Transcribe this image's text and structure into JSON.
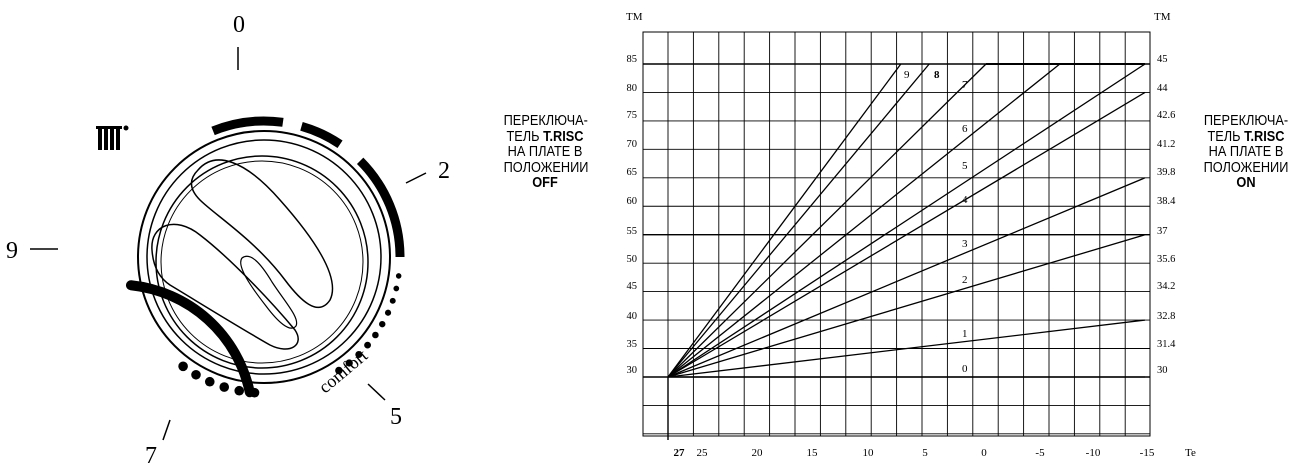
{
  "dial": {
    "scale_labels": [
      "0",
      "2",
      "5",
      "7",
      "9"
    ],
    "comfort_label": "comfort"
  },
  "left_label": {
    "line1": "ПЕРЕКЛЮЧА-",
    "line2_prefix": "ТЕЛЬ ",
    "line2_bold": "T.RISC",
    "line3": "НА ПЛАТЕ В",
    "line4": "ПОЛОЖЕНИИ",
    "line5_bold": "OFF"
  },
  "right_label": {
    "line1": "ПЕРЕКЛЮЧА-",
    "line2_prefix": "ТЕЛЬ ",
    "line2_bold": "T.RISC",
    "line3": "НА ПЛАТЕ В",
    "line4": "ПОЛОЖЕНИИ",
    "line5_bold": "ON"
  },
  "chart_data": {
    "type": "line",
    "left_axis_label": "TM",
    "right_axis_label": "TM",
    "x_axis_label": "Te",
    "x_range": [
      27,
      -15
    ],
    "left_range": [
      30,
      85
    ],
    "right_range": [
      30,
      45
    ],
    "x_ticks": [
      "27",
      "25",
      "20",
      "15",
      "10",
      "5",
      "0",
      "-5",
      "-10",
      "-15"
    ],
    "left_ticks": [
      "30",
      "35",
      "40",
      "45",
      "50",
      "55",
      "60",
      "65",
      "70",
      "75",
      "80",
      "85"
    ],
    "right_ticks": [
      "30",
      "31.4",
      "32.8",
      "34.2",
      "35.6",
      "37",
      "38.4",
      "39.8",
      "41.2",
      "42.6",
      "44",
      "45"
    ],
    "origin": {
      "te": 27,
      "tm": 30
    },
    "curves": [
      {
        "label": "0",
        "end_te": -15,
        "end_tm": 30
      },
      {
        "label": "1",
        "end_te": -15,
        "end_tm": 40
      },
      {
        "label": "2",
        "end_te": -15,
        "end_tm": 55
      },
      {
        "label": "3",
        "end_te": -15,
        "end_tm": 65
      },
      {
        "label": "4",
        "end_te": -15,
        "end_tm": 80
      },
      {
        "label": "5",
        "end_te": -15,
        "end_tm": 85
      },
      {
        "label": "6",
        "end_te": -7.5,
        "end_tm": 85
      },
      {
        "label": "7",
        "end_te": -1,
        "end_tm": 85
      },
      {
        "label": "8",
        "end_te": 4,
        "end_tm": 85
      },
      {
        "label": "9",
        "end_te": 6.5,
        "end_tm": 85
      }
    ],
    "ceiling": {
      "from_te": -1,
      "to_te": -15,
      "tm": 85
    }
  }
}
